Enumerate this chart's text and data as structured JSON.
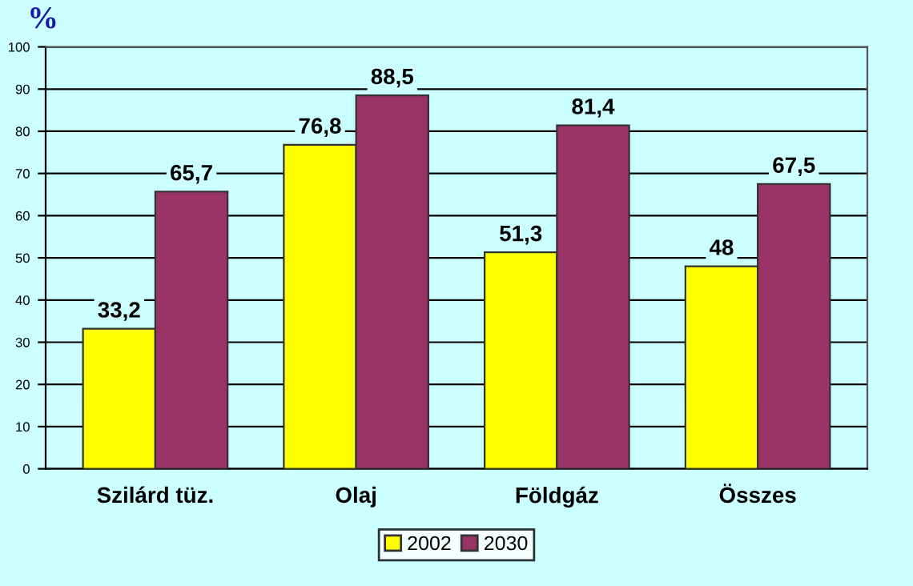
{
  "chart_data": {
    "type": "bar",
    "ylabel": "%",
    "categories": [
      "Szilárd tüz.",
      "Olaj",
      "Földgáz",
      "Összes"
    ],
    "series": [
      {
        "name": "2002",
        "color": "#ffff00",
        "values": [
          33.2,
          76.8,
          51.3,
          48
        ],
        "value_labels": [
          "33,2",
          "76,8",
          "51,3",
          "48"
        ]
      },
      {
        "name": "2030",
        "color": "#993366",
        "values": [
          65.7,
          88.5,
          81.4,
          67.5
        ],
        "value_labels": [
          "65,7",
          "88,5",
          "81,4",
          "67,5"
        ]
      }
    ],
    "ylim": [
      0,
      100
    ],
    "yticks": [
      0,
      10,
      20,
      30,
      40,
      50,
      60,
      70,
      80,
      90,
      100
    ],
    "grid": "y",
    "legend": "bottom"
  }
}
